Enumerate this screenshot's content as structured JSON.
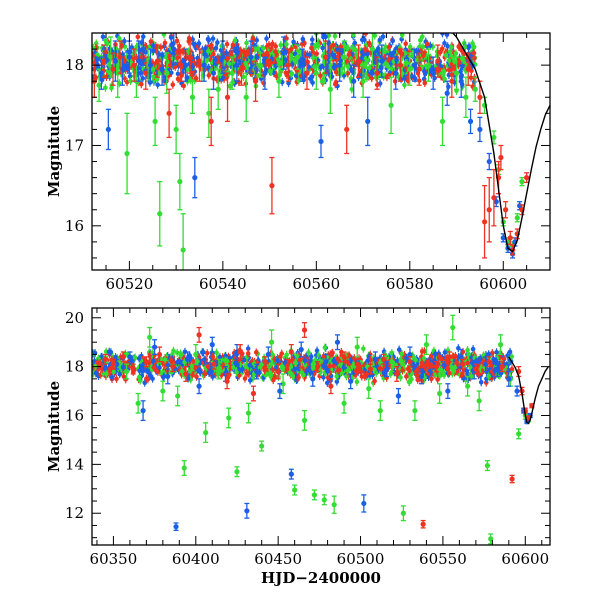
{
  "colors": {
    "green": "#33dd33",
    "blue": "#1a5fe6",
    "red": "#ee3322",
    "model": "#000000",
    "frame": "#000000"
  },
  "chart_data": [
    {
      "type": "scatter",
      "title": "",
      "xlabel": "",
      "ylabel": "Magnitude",
      "xlim": [
        60512,
        60610
      ],
      "ylim": [
        18.4,
        15.45
      ],
      "y_inverted": true,
      "grid": false,
      "legend": "none",
      "xticks": [
        60520,
        60540,
        60560,
        60580,
        60600
      ],
      "xtick_labels": [
        "60520",
        "60540",
        "60560",
        "60580",
        "60600"
      ],
      "yticks": [
        16,
        17,
        18
      ],
      "ytick_labels": [
        "16",
        "17",
        "18"
      ],
      "model_curve": {
        "style": "solid black line",
        "x": [
          60586,
          60590,
          60594,
          60596,
          60598,
          60599,
          60600,
          60601,
          60602,
          60603,
          60604,
          60605,
          60606,
          60607,
          60608,
          60609,
          60610
        ],
        "y": [
          18.6,
          18.35,
          17.95,
          17.6,
          16.9,
          16.45,
          16.0,
          15.72,
          15.68,
          15.82,
          16.1,
          16.4,
          16.7,
          16.98,
          17.2,
          17.38,
          17.5
        ]
      },
      "series": [
        {
          "color": "green",
          "x": [
            60513.5,
            60516.0,
            60517.5,
            60519.5,
            60521.5,
            60524.0,
            60525.5,
            60526.5,
            60528.0,
            60530.0,
            60530.8,
            60531.5,
            60533.5,
            60535.5,
            60537.0,
            60539.0,
            60542.0,
            60545.0,
            60548.0,
            60552.0,
            60556.0,
            60560.0,
            60563.0,
            60566.0,
            60570.0,
            60572.0,
            60576.0,
            60580.0,
            60584.0,
            60587.0,
            60590.0,
            60592.0,
            60594.0,
            60596.0,
            60598.0,
            60599.0,
            60600.0,
            60601.0,
            60602.0,
            60603.0,
            60604.0
          ],
          "y": [
            17.75,
            18.1,
            17.9,
            16.9,
            17.8,
            18.0,
            17.3,
            16.15,
            17.9,
            17.2,
            16.55,
            15.7,
            17.6,
            18.0,
            17.4,
            17.7,
            17.9,
            17.6,
            18.0,
            17.8,
            18.1,
            17.9,
            17.7,
            18.1,
            17.8,
            18.2,
            17.5,
            17.95,
            18.0,
            17.3,
            17.9,
            17.6,
            17.7,
            17.5,
            17.1,
            16.7,
            16.05,
            15.8,
            15.75,
            16.1,
            16.55
          ],
          "yerr": [
            0.2,
            0.25,
            0.3,
            0.5,
            0.2,
            0.2,
            0.3,
            0.4,
            0.25,
            0.3,
            0.35,
            0.45,
            0.2,
            0.2,
            0.3,
            0.25,
            0.2,
            0.3,
            0.15,
            0.2,
            0.15,
            0.2,
            0.3,
            0.2,
            0.2,
            0.2,
            0.35,
            0.2,
            0.2,
            0.3,
            0.2,
            0.25,
            0.15,
            0.1,
            0.08,
            0.06,
            0.05,
            0.05,
            0.05,
            0.05,
            0.05
          ]
        },
        {
          "color": "blue",
          "x": [
            60514.0,
            60515.5,
            60517.0,
            60518.5,
            60520.0,
            60522.0,
            60523.0,
            60524.5,
            60527.0,
            60529.5,
            60532.0,
            60534.0,
            60536.0,
            60538.0,
            60540.0,
            60543.0,
            60546.0,
            60549.0,
            60553.0,
            60557.0,
            60561.0,
            60562.5,
            60565.0,
            60568.0,
            60571.0,
            60574.0,
            60577.0,
            60581.0,
            60585.0,
            60588.0,
            60591.0,
            60593.0,
            60595.0,
            60597.0,
            60598.5,
            60600.0,
            60601.0,
            60602.0,
            60602.5,
            60603.5
          ],
          "y": [
            17.9,
            17.2,
            18.05,
            17.95,
            18.1,
            18.05,
            18.2,
            18.0,
            17.95,
            18.2,
            18.0,
            16.6,
            18.0,
            17.9,
            18.1,
            18.0,
            18.1,
            17.9,
            18.15,
            18.0,
            17.05,
            18.1,
            18.0,
            17.8,
            17.3,
            18.05,
            17.9,
            18.0,
            17.9,
            17.65,
            17.8,
            17.3,
            17.2,
            16.8,
            16.3,
            15.85,
            15.72,
            15.65,
            15.8,
            16.25
          ],
          "yerr": [
            0.2,
            0.25,
            0.25,
            0.2,
            0.2,
            0.25,
            0.2,
            0.2,
            0.2,
            0.2,
            0.2,
            0.25,
            0.2,
            0.2,
            0.2,
            0.2,
            0.2,
            0.2,
            0.2,
            0.2,
            0.2,
            0.2,
            0.2,
            0.2,
            0.3,
            0.2,
            0.2,
            0.2,
            0.2,
            0.15,
            0.2,
            0.15,
            0.15,
            0.1,
            0.06,
            0.05,
            0.05,
            0.05,
            0.05,
            0.05
          ]
        },
        {
          "color": "red",
          "x": [
            60512.5,
            60514.5,
            60516.5,
            60518.0,
            60521.0,
            60523.5,
            60526.0,
            60528.5,
            60531.0,
            60533.0,
            60535.0,
            60537.5,
            60541.0,
            60544.0,
            60547.0,
            60550.5,
            60554.0,
            60558.0,
            60562.0,
            60566.5,
            60569.0,
            60573.0,
            60578.0,
            60582.0,
            60586.0,
            60589.0,
            60592.5,
            60595.0,
            60596.0,
            60597.0,
            60598.0,
            60599.0,
            60599.5,
            60600.5,
            60601.5,
            60602.0,
            60603.0,
            60604.0,
            60605.0
          ],
          "y": [
            17.8,
            18.05,
            17.95,
            18.1,
            18.0,
            17.9,
            18.05,
            17.4,
            18.0,
            18.1,
            18.0,
            17.3,
            17.6,
            17.95,
            17.8,
            16.5,
            18.0,
            17.9,
            18.1,
            17.2,
            18.05,
            17.9,
            18.0,
            17.95,
            18.05,
            17.8,
            17.95,
            17.6,
            16.05,
            16.2,
            16.35,
            16.6,
            16.85,
            16.2,
            15.85,
            15.7,
            15.9,
            16.2,
            16.6
          ],
          "yerr": [
            0.2,
            0.2,
            0.2,
            0.2,
            0.2,
            0.2,
            0.2,
            0.3,
            0.2,
            0.2,
            0.2,
            0.3,
            0.3,
            0.2,
            0.25,
            0.35,
            0.2,
            0.2,
            0.2,
            0.3,
            0.2,
            0.2,
            0.2,
            0.2,
            0.2,
            0.2,
            0.2,
            0.2,
            0.45,
            0.4,
            0.35,
            0.2,
            0.15,
            0.1,
            0.08,
            0.06,
            0.06,
            0.06,
            0.06
          ]
        }
      ]
    },
    {
      "type": "scatter",
      "title": "",
      "xlabel": "HJD−2400000",
      "ylabel": "Magnitude",
      "xlim": [
        60337,
        60615
      ],
      "ylim": [
        20.4,
        10.7
      ],
      "y_inverted": true,
      "grid": false,
      "legend": "none",
      "xticks": [
        60350,
        60400,
        60450,
        60500,
        60550,
        60600
      ],
      "xtick_labels": [
        "60350",
        "60400",
        "60450",
        "60500",
        "60550",
        "60600"
      ],
      "yticks": [
        12,
        14,
        16,
        18,
        20
      ],
      "ytick_labels": [
        "12",
        "14",
        "16",
        "18",
        "20"
      ],
      "model_curve": {
        "style": "solid black line",
        "x": [
          60590,
          60594,
          60596,
          60598,
          60600,
          60601,
          60602,
          60603,
          60604,
          60606,
          60608,
          60610,
          60612,
          60614
        ],
        "y": [
          18.4,
          17.95,
          17.6,
          16.9,
          16.0,
          15.72,
          15.68,
          15.82,
          16.1,
          16.7,
          17.2,
          17.5,
          17.8,
          18.0
        ]
      },
      "series": [
        {
          "color": "green",
          "x": [
            60358,
            60365,
            60372,
            60380,
            60389,
            60393,
            60400,
            60406,
            60414,
            60420,
            60425,
            60432,
            60440,
            60446,
            60453,
            60460,
            60466,
            60472,
            60478,
            60484,
            60490,
            60498,
            60505,
            60512,
            60519,
            60526,
            60533,
            60540,
            60548,
            60556,
            60565,
            60572,
            60577,
            60579,
            60585,
            60591,
            60596,
            60600,
            60602
          ],
          "y": [
            17.8,
            16.5,
            19.2,
            17.0,
            16.8,
            13.85,
            18.5,
            15.3,
            17.9,
            15.9,
            13.7,
            16.1,
            14.75,
            19.0,
            17.3,
            12.95,
            15.8,
            12.75,
            12.55,
            12.35,
            16.5,
            18.8,
            17.1,
            16.2,
            18.2,
            12.0,
            16.2,
            18.9,
            16.9,
            19.6,
            17.2,
            16.6,
            13.95,
            10.95,
            18.9,
            17.5,
            15.25,
            16.0,
            15.9
          ],
          "yerr": [
            0.3,
            0.4,
            0.4,
            0.4,
            0.4,
            0.3,
            0.4,
            0.4,
            0.4,
            0.4,
            0.2,
            0.4,
            0.2,
            0.5,
            0.4,
            0.2,
            0.4,
            0.2,
            0.2,
            0.35,
            0.4,
            0.4,
            0.4,
            0.4,
            0.4,
            0.3,
            0.4,
            0.4,
            0.4,
            0.5,
            0.4,
            0.4,
            0.2,
            0.2,
            0.4,
            0.3,
            0.2,
            0.15,
            0.15
          ]
        },
        {
          "color": "blue",
          "x": [
            60352,
            60360,
            60368,
            60375,
            60383,
            60388,
            60395,
            60402,
            60410,
            60418,
            60425,
            60431,
            60437,
            60444,
            60451,
            60458,
            60464,
            60471,
            60479,
            60486,
            60494,
            60502,
            60509,
            60516,
            60523,
            60530,
            60537,
            60545,
            60553,
            60561,
            60569,
            60576,
            60583,
            60590,
            60595,
            60599,
            60601,
            60603
          ],
          "y": [
            18.1,
            18.4,
            16.2,
            18.8,
            17.6,
            11.45,
            18.3,
            17.2,
            18.9,
            17.7,
            18.6,
            12.1,
            17.8,
            18.5,
            17.0,
            13.6,
            18.7,
            17.5,
            18.2,
            19.0,
            17.4,
            12.4,
            18.3,
            17.9,
            16.8,
            18.5,
            17.6,
            18.2,
            17.0,
            18.4,
            17.8,
            18.1,
            17.9,
            17.5,
            17.0,
            16.2,
            15.75,
            16.0
          ],
          "yerr": [
            0.2,
            0.2,
            0.4,
            0.3,
            0.3,
            0.15,
            0.3,
            0.3,
            0.3,
            0.3,
            0.3,
            0.3,
            0.3,
            0.3,
            0.3,
            0.2,
            0.3,
            0.3,
            0.3,
            0.3,
            0.3,
            0.35,
            0.3,
            0.3,
            0.3,
            0.3,
            0.3,
            0.3,
            0.3,
            0.3,
            0.3,
            0.3,
            0.3,
            0.3,
            0.2,
            0.1,
            0.08,
            0.08
          ]
        },
        {
          "color": "red",
          "x": [
            60345,
            60350,
            60356,
            60362,
            60370,
            60378,
            60386,
            60394,
            60402,
            60411,
            60419,
            60427,
            60435,
            60442,
            60450,
            60458,
            60466,
            60474,
            60482,
            60490,
            60498,
            60506,
            60514,
            60522,
            60530,
            60538,
            60546,
            60554,
            60562,
            60570,
            60578,
            60586,
            60592,
            60596,
            60598,
            60600,
            60602,
            60604
          ],
          "y": [
            18.3,
            18.1,
            18.4,
            17.9,
            18.2,
            18.5,
            18.0,
            17.7,
            19.3,
            18.1,
            17.4,
            18.6,
            16.9,
            18.2,
            17.8,
            18.6,
            19.5,
            18.0,
            17.2,
            18.4,
            18.1,
            17.9,
            18.3,
            17.7,
            18.2,
            11.55,
            18.0,
            18.4,
            18.1,
            17.9,
            18.2,
            18.0,
            13.4,
            17.8,
            17.0,
            16.2,
            15.9,
            16.4
          ],
          "yerr": [
            0.2,
            0.2,
            0.2,
            0.2,
            0.2,
            0.3,
            0.2,
            0.3,
            0.3,
            0.2,
            0.3,
            0.3,
            0.3,
            0.2,
            0.3,
            0.3,
            0.3,
            0.2,
            0.3,
            0.2,
            0.2,
            0.2,
            0.2,
            0.3,
            0.2,
            0.15,
            0.2,
            0.2,
            0.2,
            0.2,
            0.2,
            0.2,
            0.15,
            0.2,
            0.15,
            0.1,
            0.08,
            0.08
          ]
        }
      ]
    }
  ]
}
